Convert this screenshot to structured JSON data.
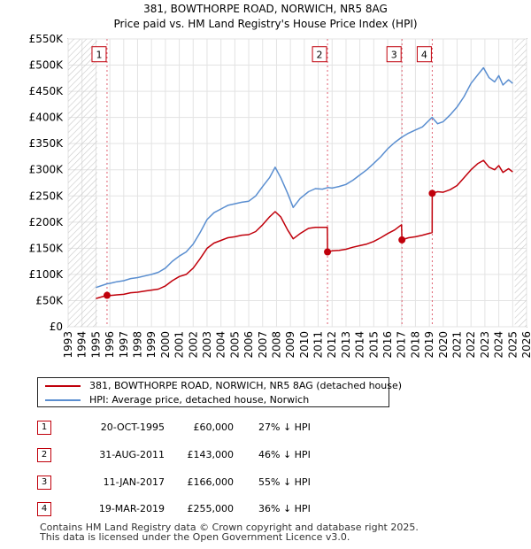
{
  "chart_data": {
    "type": "line",
    "title": "381, BOWTHORPE ROAD, NORWICH, NR5 8AG",
    "subtitle": "Price paid vs. HM Land Registry's House Price Index (HPI)",
    "xlabel": "",
    "ylabel": "",
    "xlim": [
      1993,
      2026
    ],
    "ylim": [
      0,
      550000
    ],
    "y_ticks": [
      {
        "value": 0,
        "label": "£0"
      },
      {
        "value": 50000,
        "label": "£50K"
      },
      {
        "value": 100000,
        "label": "£100K"
      },
      {
        "value": 150000,
        "label": "£150K"
      },
      {
        "value": 200000,
        "label": "£200K"
      },
      {
        "value": 250000,
        "label": "£250K"
      },
      {
        "value": 300000,
        "label": "£300K"
      },
      {
        "value": 350000,
        "label": "£350K"
      },
      {
        "value": 400000,
        "label": "£400K"
      },
      {
        "value": 450000,
        "label": "£450K"
      },
      {
        "value": 500000,
        "label": "£500K"
      },
      {
        "value": 550000,
        "label": "£550K"
      }
    ],
    "x_ticks": [
      "1993",
      "1994",
      "1995",
      "1996",
      "1997",
      "1998",
      "1999",
      "2000",
      "2001",
      "2002",
      "2003",
      "2004",
      "2005",
      "2006",
      "2007",
      "2008",
      "2009",
      "2010",
      "2011",
      "2012",
      "2013",
      "2014",
      "2015",
      "2016",
      "2017",
      "2018",
      "2019",
      "2020",
      "2021",
      "2022",
      "2023",
      "2024",
      "2025",
      "2026"
    ],
    "hatched_ranges": [
      [
        1993,
        1995.1
      ],
      [
        2025.15,
        2026
      ]
    ],
    "series": [
      {
        "name": "381, BOWTHORPE ROAD, NORWICH, NR5 8AG (detached house)",
        "color": "#c0000b",
        "points": [
          [
            1995.0,
            54000
          ],
          [
            1995.8,
            60000
          ],
          [
            1996.0,
            59500
          ],
          [
            1996.5,
            61000
          ],
          [
            1997.0,
            62000
          ],
          [
            1997.5,
            65000
          ],
          [
            1998.0,
            66000
          ],
          [
            1998.5,
            68000
          ],
          [
            1999.0,
            70000
          ],
          [
            1999.5,
            72000
          ],
          [
            2000.0,
            78000
          ],
          [
            2000.5,
            88000
          ],
          [
            2001.0,
            96000
          ],
          [
            2001.5,
            100000
          ],
          [
            2002.0,
            112000
          ],
          [
            2002.5,
            130000
          ],
          [
            2003.0,
            150000
          ],
          [
            2003.5,
            160000
          ],
          [
            2004.0,
            165000
          ],
          [
            2004.5,
            170000
          ],
          [
            2005.0,
            172000
          ],
          [
            2005.5,
            175000
          ],
          [
            2006.0,
            176000
          ],
          [
            2006.5,
            182000
          ],
          [
            2007.0,
            195000
          ],
          [
            2007.5,
            210000
          ],
          [
            2007.9,
            220000
          ],
          [
            2008.3,
            210000
          ],
          [
            2008.8,
            185000
          ],
          [
            2009.2,
            168000
          ],
          [
            2009.7,
            178000
          ],
          [
            2010.3,
            188000
          ],
          [
            2010.8,
            190000
          ],
          [
            2011.3,
            190000
          ],
          [
            2011.66,
            190000
          ],
          [
            2011.67,
            143000
          ],
          [
            2012.0,
            145000
          ],
          [
            2012.5,
            146000
          ],
          [
            2013.0,
            148000
          ],
          [
            2013.5,
            152000
          ],
          [
            2014.0,
            155000
          ],
          [
            2014.5,
            158000
          ],
          [
            2015.0,
            163000
          ],
          [
            2015.5,
            170000
          ],
          [
            2016.0,
            178000
          ],
          [
            2016.5,
            185000
          ],
          [
            2017.0,
            195000
          ],
          [
            2017.03,
            166000
          ],
          [
            2017.5,
            170000
          ],
          [
            2018.0,
            172000
          ],
          [
            2018.5,
            175000
          ],
          [
            2019.2,
            180000
          ],
          [
            2019.21,
            255000
          ],
          [
            2019.6,
            258000
          ],
          [
            2020.0,
            257000
          ],
          [
            2020.5,
            262000
          ],
          [
            2021.0,
            270000
          ],
          [
            2021.5,
            285000
          ],
          [
            2022.0,
            300000
          ],
          [
            2022.5,
            312000
          ],
          [
            2022.9,
            318000
          ],
          [
            2023.3,
            305000
          ],
          [
            2023.7,
            300000
          ],
          [
            2024.0,
            308000
          ],
          [
            2024.3,
            295000
          ],
          [
            2024.7,
            302000
          ],
          [
            2025.0,
            296000
          ]
        ]
      },
      {
        "name": "HPI: Average price, detached house, Norwich",
        "color": "#5a8ed0",
        "points": [
          [
            1995.0,
            75000
          ],
          [
            1995.8,
            82000
          ],
          [
            1996.0,
            83000
          ],
          [
            1996.5,
            86000
          ],
          [
            1997.0,
            88000
          ],
          [
            1997.5,
            92000
          ],
          [
            1998.0,
            94000
          ],
          [
            1998.5,
            97000
          ],
          [
            1999.0,
            100000
          ],
          [
            1999.5,
            104000
          ],
          [
            2000.0,
            112000
          ],
          [
            2000.5,
            125000
          ],
          [
            2001.0,
            135000
          ],
          [
            2001.5,
            143000
          ],
          [
            2002.0,
            158000
          ],
          [
            2002.5,
            180000
          ],
          [
            2003.0,
            205000
          ],
          [
            2003.5,
            218000
          ],
          [
            2004.0,
            225000
          ],
          [
            2004.5,
            232000
          ],
          [
            2005.0,
            235000
          ],
          [
            2005.5,
            238000
          ],
          [
            2006.0,
            240000
          ],
          [
            2006.5,
            250000
          ],
          [
            2007.0,
            268000
          ],
          [
            2007.5,
            285000
          ],
          [
            2007.9,
            305000
          ],
          [
            2008.3,
            285000
          ],
          [
            2008.8,
            255000
          ],
          [
            2009.2,
            228000
          ],
          [
            2009.7,
            245000
          ],
          [
            2010.3,
            258000
          ],
          [
            2010.8,
            264000
          ],
          [
            2011.3,
            263000
          ],
          [
            2011.7,
            266000
          ],
          [
            2012.0,
            265000
          ],
          [
            2012.5,
            268000
          ],
          [
            2013.0,
            272000
          ],
          [
            2013.5,
            280000
          ],
          [
            2014.0,
            290000
          ],
          [
            2014.5,
            300000
          ],
          [
            2015.0,
            312000
          ],
          [
            2015.5,
            325000
          ],
          [
            2016.0,
            340000
          ],
          [
            2016.5,
            352000
          ],
          [
            2017.0,
            362000
          ],
          [
            2017.5,
            370000
          ],
          [
            2018.0,
            376000
          ],
          [
            2018.5,
            382000
          ],
          [
            2019.0,
            395000
          ],
          [
            2019.2,
            400000
          ],
          [
            2019.6,
            388000
          ],
          [
            2020.0,
            392000
          ],
          [
            2020.5,
            405000
          ],
          [
            2021.0,
            420000
          ],
          [
            2021.5,
            440000
          ],
          [
            2022.0,
            465000
          ],
          [
            2022.5,
            482000
          ],
          [
            2022.9,
            495000
          ],
          [
            2023.3,
            476000
          ],
          [
            2023.7,
            468000
          ],
          [
            2024.0,
            480000
          ],
          [
            2024.3,
            462000
          ],
          [
            2024.7,
            472000
          ],
          [
            2025.0,
            465000
          ]
        ]
      }
    ],
    "sales": [
      {
        "label": "1",
        "x": 1995.8,
        "value": 60000
      },
      {
        "label": "2",
        "x": 2011.67,
        "value": 143000
      },
      {
        "label": "3",
        "x": 2017.03,
        "value": 166000
      },
      {
        "label": "4",
        "x": 2019.21,
        "value": 255000
      }
    ],
    "sale_label_value": 520000
  },
  "legend": {
    "property_label": "381, BOWTHORPE ROAD, NORWICH, NR5 8AG (detached house)",
    "hpi_label": "HPI: Average price, detached house, Norwich",
    "property_color": "#c0000b",
    "hpi_color": "#5a8ed0"
  },
  "transactions": [
    {
      "num": "1",
      "date": "20-OCT-1995",
      "price": "£60,000",
      "hpi": "27% ↓ HPI"
    },
    {
      "num": "2",
      "date": "31-AUG-2011",
      "price": "£143,000",
      "hpi": "46% ↓ HPI"
    },
    {
      "num": "3",
      "date": "11-JAN-2017",
      "price": "£166,000",
      "hpi": "55% ↓ HPI"
    },
    {
      "num": "4",
      "date": "19-MAR-2019",
      "price": "£255,000",
      "hpi": "36% ↓ HPI"
    }
  ],
  "footer": {
    "line1": "Contains HM Land Registry data © Crown copyright and database right 2025.",
    "line2": "This data is licensed under the Open Government Licence v3.0."
  }
}
